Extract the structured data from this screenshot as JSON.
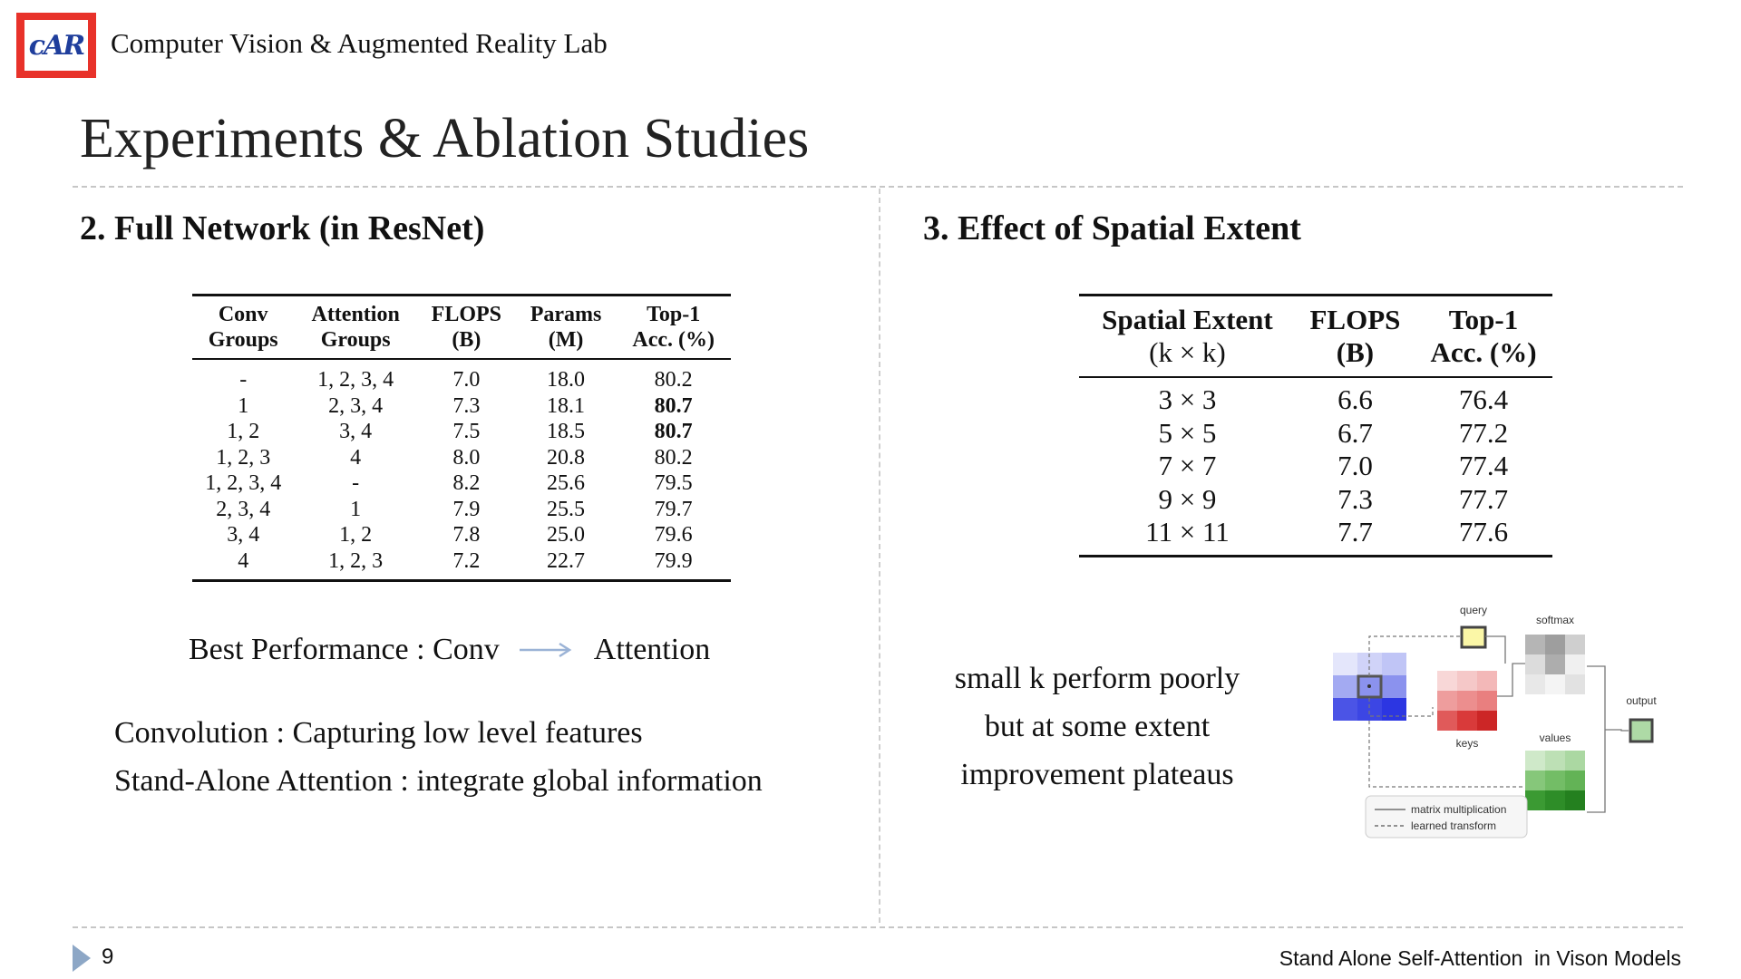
{
  "header": {
    "logo_text": "cAR",
    "lab_name": "Computer Vision & Augmented Reality Lab",
    "title": "Experiments & Ablation Studies"
  },
  "left": {
    "section_title": "2. Full Network (in ResNet)",
    "table": {
      "headers": [
        {
          "l1": "Conv",
          "l2": "Groups"
        },
        {
          "l1": "Attention",
          "l2": "Groups"
        },
        {
          "l1": "FLOPS",
          "l2": "(B)"
        },
        {
          "l1": "Params",
          "l2": "(M)"
        },
        {
          "l1": "Top-1",
          "l2": "Acc. (%)"
        }
      ],
      "rows": [
        [
          "-",
          "1, 2, 3, 4",
          "7.0",
          "18.0",
          "80.2"
        ],
        [
          "1",
          "2, 3, 4",
          "7.3",
          "18.1",
          "80.7"
        ],
        [
          "1, 2",
          "3, 4",
          "7.5",
          "18.5",
          "80.7"
        ],
        [
          "1, 2, 3",
          "4",
          "8.0",
          "20.8",
          "80.2"
        ],
        [
          "1, 2, 3, 4",
          "-",
          "8.2",
          "25.6",
          "79.5"
        ],
        [
          "2, 3, 4",
          "1",
          "7.9",
          "25.5",
          "79.7"
        ],
        [
          "3, 4",
          "1, 2",
          "7.8",
          "25.0",
          "79.6"
        ],
        [
          "4",
          "1, 2, 3",
          "7.2",
          "22.7",
          "79.9"
        ]
      ]
    },
    "best_label": "Best Performance : Conv",
    "best_target": "Attention",
    "note1": "Convolution : Capturing low level features",
    "note2": "Stand-Alone Attention : integrate global information"
  },
  "right": {
    "section_title": "3. Effect of Spatial Extent",
    "table": {
      "headers": [
        {
          "l1": "Spatial Extent",
          "l2": "(k × k)"
        },
        {
          "l1": "FLOPS",
          "l2": "(B)"
        },
        {
          "l1": "Top-1",
          "l2": "Acc. (%)"
        }
      ],
      "rows": [
        [
          "3 × 3",
          "6.6",
          "76.4"
        ],
        [
          "5 × 5",
          "6.7",
          "77.2"
        ],
        [
          "7 × 7",
          "7.0",
          "77.4"
        ],
        [
          "9 × 9",
          "7.3",
          "77.7"
        ],
        [
          "11 × 11",
          "7.7",
          "77.6"
        ]
      ]
    },
    "text_lines": [
      "small k perform poorly",
      "but at some extent",
      "improvement plateaus"
    ],
    "diagram": {
      "query": "query",
      "keys": "keys",
      "softmax": "softmax",
      "values": "values",
      "output": "output",
      "legend_solid": "matrix multiplication",
      "legend_dashed": "learned transform"
    }
  },
  "footer": {
    "page_number": "9",
    "title": "Stand Alone Self-Attention  in Vison Models"
  },
  "colors": {
    "logo_red": "#e8322a",
    "logo_blue": "#1f3e9c",
    "arrow": "#9bb3d6",
    "footer_triangle": "#8da7c6"
  }
}
